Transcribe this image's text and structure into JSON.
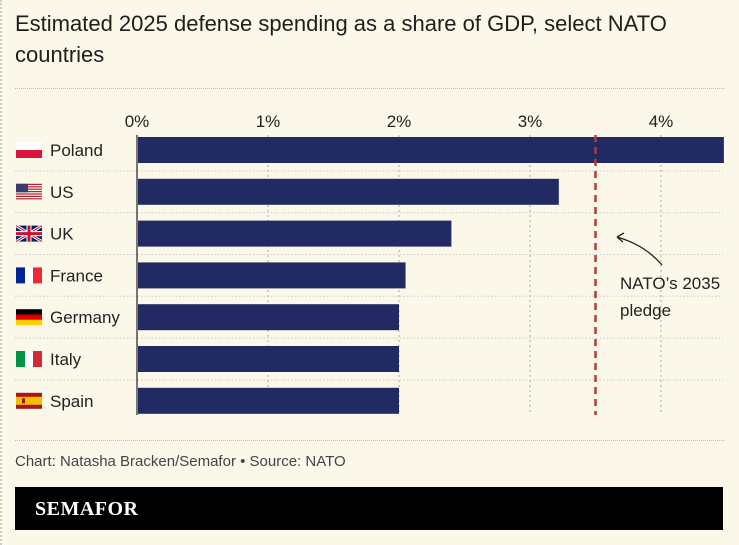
{
  "title": "Estimated 2025 defense spending as a share of GDP, select NATO countries",
  "source": "Chart: Natasha Bracken/Semafor • Source: NATO",
  "logo": "SEMAFOR",
  "colors": {
    "bar": "#222a63",
    "pledge": "#b83a32",
    "background": "#fbf7e9"
  },
  "chart_data": {
    "type": "bar",
    "orientation": "horizontal",
    "title": "Estimated 2025 defense spending as a share of GDP, select NATO countries",
    "xlabel": "",
    "ylabel": "",
    "categories": [
      "Poland",
      "US",
      "UK",
      "France",
      "Germany",
      "Italy",
      "Spain"
    ],
    "values": [
      4.48,
      3.22,
      2.4,
      2.05,
      2.0,
      2.0,
      2.0
    ],
    "xlim": [
      0,
      4.5
    ],
    "ticks": [
      0,
      1,
      2,
      3,
      4
    ],
    "tick_labels": [
      "0%",
      "1%",
      "2%",
      "3%",
      "4%"
    ],
    "grid": true,
    "reference_line": {
      "value": 3.5,
      "label_line1": "NATO’s 2035",
      "label_line2": "pledge",
      "style": "dashed"
    }
  }
}
